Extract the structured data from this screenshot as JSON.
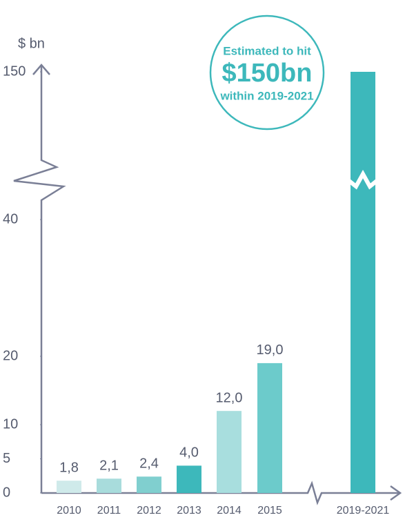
{
  "chart_data": {
    "type": "bar",
    "y_label": "$ bn",
    "categories": [
      "2010",
      "2011",
      "2012",
      "2013",
      "2014",
      "2015",
      "2019-2021"
    ],
    "values": [
      1.8,
      2.1,
      2.4,
      4.0,
      12.0,
      19.0,
      150
    ],
    "value_labels": [
      "1,8",
      "2,1",
      "2,4",
      "4,0",
      "12,0",
      "19,0",
      null
    ],
    "colors": [
      "#cfeaea",
      "#a8dcdc",
      "#80cfcf",
      "#3db8bb",
      "#a8dede",
      "#6ccbcb",
      "#3db8bb"
    ],
    "ylim": [
      0,
      150
    ],
    "yticks": [
      0,
      5,
      10,
      20,
      40,
      150
    ],
    "axis_break": true,
    "annotation": {
      "line1": "Estimated to hit",
      "line2": "$150bn",
      "line3": "within 2019-2021"
    }
  }
}
